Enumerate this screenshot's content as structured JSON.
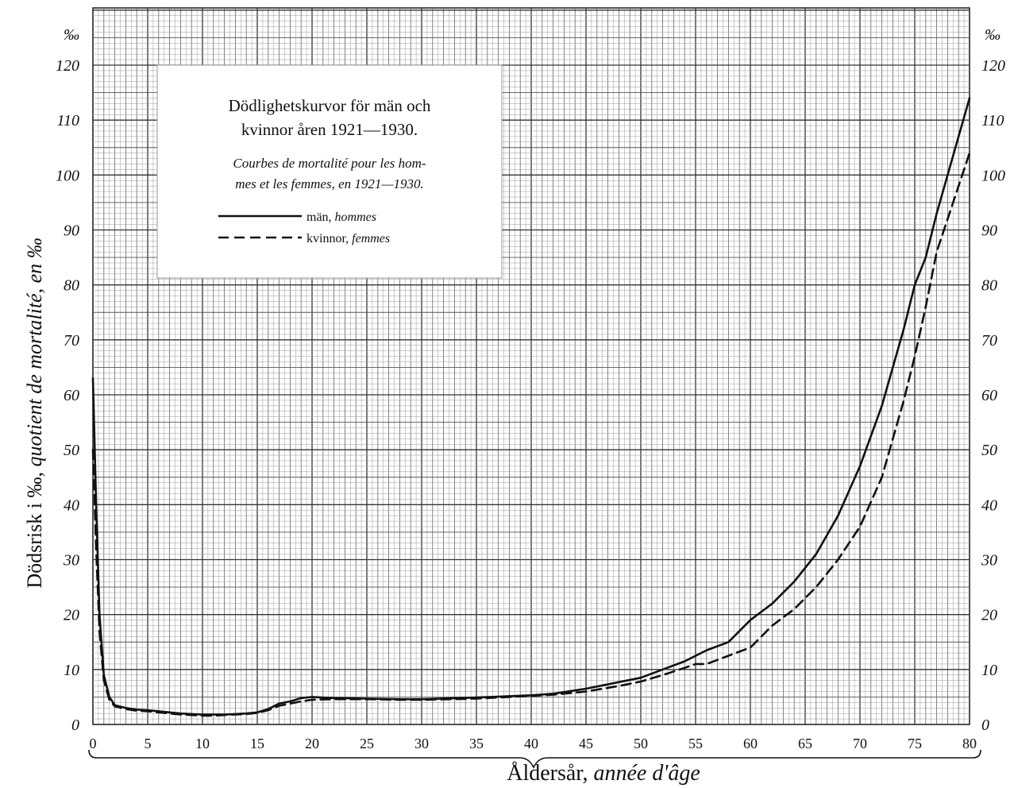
{
  "chart_data": {
    "type": "line",
    "title_sv_line1": "Dödlighetskurvor för män och",
    "title_sv_line2": "kvinnor åren 1921—1930.",
    "subtitle_fr_line1": "Courbes de mortalité pour les hom-",
    "subtitle_fr_line2": "mes et les femmes, en 1921—1930.",
    "ylabel_sv": "Dödsrisk i ‰,",
    "ylabel_fr": "quotient  de mortalité, en ‰",
    "xlabel_sv": "Åldersår,",
    "xlabel_fr": "année d'âge",
    "unit_symbol": "‰",
    "xlim": [
      0,
      80
    ],
    "ylim": [
      0,
      120
    ],
    "x_ticks": [
      "0",
      "5",
      "10",
      "15",
      "20",
      "25",
      "30",
      "35",
      "40",
      "45",
      "50",
      "55",
      "60",
      "65",
      "70",
      "75",
      "80"
    ],
    "y_ticks": [
      "0",
      "10",
      "20",
      "30",
      "40",
      "50",
      "60",
      "70",
      "80",
      "90",
      "100",
      "110",
      "120"
    ],
    "grid": true,
    "legend_placement": "top-left",
    "series": [
      {
        "name": "män,",
        "name_fr": "hommes",
        "style": "solid",
        "x": [
          0,
          0.3,
          0.6,
          1,
          1.5,
          2,
          3,
          4,
          5,
          6,
          7,
          8,
          9,
          10,
          11,
          12,
          13,
          14,
          15,
          16,
          17,
          18,
          19,
          20,
          22,
          25,
          28,
          30,
          35,
          40,
          42,
          45,
          48,
          50,
          52,
          54,
          56,
          58,
          60,
          62,
          64,
          66,
          68,
          70,
          72,
          74,
          75,
          76,
          77,
          78,
          79,
          80
        ],
        "y": [
          63,
          40,
          20,
          9,
          5,
          3.5,
          3,
          2.7,
          2.6,
          2.4,
          2.2,
          2.0,
          1.9,
          1.8,
          1.8,
          1.8,
          1.9,
          2.0,
          2.2,
          2.8,
          3.8,
          4.2,
          4.8,
          5.0,
          4.8,
          4.7,
          4.6,
          4.6,
          4.9,
          5.3,
          5.6,
          6.5,
          7.7,
          8.5,
          10,
          11.5,
          13.5,
          15,
          19,
          22,
          26,
          31,
          38,
          47,
          58,
          72,
          80,
          85,
          93,
          100,
          107,
          114
        ]
      },
      {
        "name": "kvinnor,",
        "name_fr": "femmes",
        "style": "dashed",
        "x": [
          0,
          0.3,
          0.6,
          1,
          1.5,
          2,
          3,
          4,
          5,
          6,
          7,
          8,
          9,
          10,
          11,
          12,
          13,
          14,
          15,
          16,
          17,
          18,
          19,
          20,
          22,
          25,
          28,
          30,
          35,
          40,
          42,
          45,
          48,
          50,
          52,
          54,
          55,
          56,
          58,
          60,
          62,
          64,
          66,
          68,
          70,
          72,
          74,
          75,
          76,
          77,
          78,
          79,
          80
        ],
        "y": [
          50,
          32,
          17,
          8,
          4.5,
          3.3,
          2.8,
          2.5,
          2.4,
          2.2,
          2.0,
          1.8,
          1.7,
          1.6,
          1.6,
          1.7,
          1.8,
          1.9,
          2.1,
          2.6,
          3.4,
          3.8,
          4.2,
          4.5,
          4.6,
          4.6,
          4.5,
          4.5,
          4.7,
          5.2,
          5.4,
          6.0,
          7.0,
          7.8,
          9.0,
          10.3,
          11.0,
          11.0,
          12.5,
          14,
          18,
          21,
          25,
          30,
          36,
          45,
          59,
          67,
          76,
          86,
          92,
          98,
          104
        ]
      }
    ]
  }
}
